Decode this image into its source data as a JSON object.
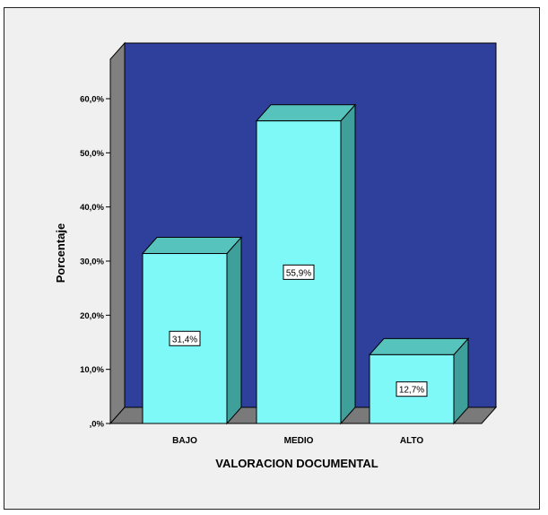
{
  "chart_data": {
    "type": "bar",
    "title": "",
    "xlabel": "VALORACION DOCUMENTAL",
    "ylabel": "Porcentaje",
    "categories": [
      "BAJO",
      "MEDIO",
      "ALTO"
    ],
    "values": [
      31.4,
      55.9,
      12.7
    ],
    "data_labels": [
      "31,4%",
      "55,9%",
      "12,7%"
    ],
    "ylim": [
      0,
      60
    ],
    "yticks": [
      0,
      10,
      20,
      30,
      40,
      50,
      60
    ],
    "ytick_labels": [
      ",0%",
      "10,0%",
      "20,0%",
      "30,0%",
      "40,0%",
      "50,0%",
      "60,0%"
    ],
    "grid": false,
    "legend": "none",
    "style": "3d",
    "colors": {
      "plot_background": "#2f3f9c",
      "bar_front": "#7ff8f8",
      "bar_top": "#56c4bd",
      "bar_side": "#3f9f9a",
      "floor": "#7a7a7a",
      "side_wall": "#808080",
      "outer_background": "#f0f0f0"
    }
  }
}
